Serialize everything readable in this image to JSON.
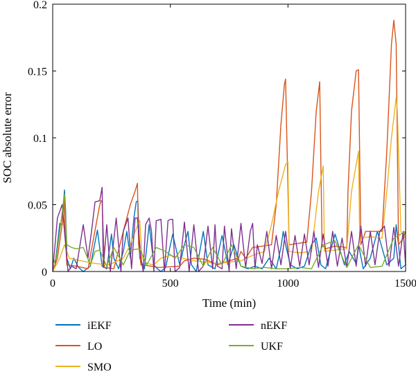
{
  "chart_data": {
    "type": "line",
    "xlabel": "Time (min)",
    "ylabel": "SOC absolute error",
    "xlim": [
      0,
      1500
    ],
    "ylim": [
      0,
      0.2
    ],
    "xticks": [
      0,
      500,
      1000,
      1500
    ],
    "xtick_labels": [
      "0",
      "500",
      "1000",
      "1500"
    ],
    "yticks": [
      0,
      0.05,
      0.1,
      0.15,
      0.2
    ],
    "ytick_labels": [
      "0",
      "0.05",
      "0.1",
      "0.15",
      "0.2"
    ],
    "grid": false,
    "legend_position": "bottom",
    "series": [
      {
        "name": "iEKF",
        "color": "#0072BD",
        "x": [
          0,
          10,
          20,
          30,
          40,
          45,
          50,
          55,
          60,
          75,
          90,
          110,
          130,
          160,
          190,
          210,
          230,
          250,
          260,
          280,
          300,
          315,
          330,
          345,
          355,
          362,
          370,
          390,
          410,
          430,
          445,
          460,
          480,
          510,
          540,
          560,
          575,
          590,
          610,
          620,
          640,
          660,
          690,
          720,
          745,
          770,
          800,
          830,
          860,
          890,
          920,
          950,
          970,
          980,
          990,
          1010,
          1040,
          1070,
          1100,
          1120,
          1140,
          1160,
          1200,
          1240,
          1260,
          1290,
          1300,
          1320,
          1350,
          1380,
          1420,
          1450,
          1460,
          1470,
          1480,
          1500
        ],
        "y": [
          0.0,
          0.005,
          0.02,
          0.036,
          0.035,
          0.05,
          0.061,
          0.045,
          0.01,
          0.002,
          0.01,
          0.003,
          0.0,
          0.004,
          0.031,
          0.004,
          0.002,
          0.028,
          0.01,
          0.002,
          0.015,
          0.03,
          0.01,
          0.04,
          0.052,
          0.053,
          0.01,
          0.002,
          0.035,
          0.005,
          0.002,
          0.0,
          0.003,
          0.028,
          0.005,
          0.02,
          0.03,
          0.005,
          0.0,
          0.01,
          0.03,
          0.005,
          0.002,
          0.027,
          0.005,
          0.02,
          0.004,
          0.002,
          0.004,
          0.002,
          0.01,
          0.002,
          0.018,
          0.03,
          0.02,
          0.005,
          0.002,
          0.004,
          0.02,
          0.025,
          0.005,
          0.002,
          0.028,
          0.005,
          0.015,
          0.006,
          0.02,
          0.002,
          0.01,
          0.03,
          0.005,
          0.01,
          0.035,
          0.02,
          0.002,
          0.005
        ]
      },
      {
        "name": "LO",
        "color": "#D95319",
        "x": [
          0,
          20,
          40,
          48,
          50,
          60,
          100,
          150,
          200,
          205,
          210,
          220,
          260,
          300,
          330,
          350,
          360,
          365,
          375,
          420,
          450,
          540,
          560,
          600,
          650,
          700,
          750,
          790,
          800,
          820,
          850,
          930,
          950,
          970,
          985,
          990,
          1005,
          1080,
          1100,
          1120,
          1135,
          1145,
          1160,
          1200,
          1250,
          1255,
          1270,
          1290,
          1300,
          1310,
          1330,
          1400,
          1420,
          1440,
          1450,
          1460,
          1470,
          1490,
          1500
        ],
        "y": [
          0.0,
          0.01,
          0.035,
          0.055,
          0.04,
          0.005,
          0.004,
          0.002,
          0.05,
          0.053,
          0.052,
          0.003,
          0.002,
          0.03,
          0.05,
          0.06,
          0.066,
          0.02,
          0.005,
          0.004,
          0.003,
          0.004,
          0.008,
          0.01,
          0.009,
          0.005,
          0.008,
          0.01,
          0.015,
          0.01,
          0.018,
          0.02,
          0.05,
          0.11,
          0.14,
          0.144,
          0.02,
          0.022,
          0.06,
          0.12,
          0.142,
          0.02,
          0.017,
          0.019,
          0.018,
          0.06,
          0.12,
          0.15,
          0.151,
          0.02,
          0.03,
          0.03,
          0.09,
          0.17,
          0.188,
          0.17,
          0.02,
          0.025,
          0.03
        ]
      },
      {
        "name": "SMO",
        "color": "#EDB120",
        "x": [
          0,
          30,
          50,
          70,
          120,
          180,
          240,
          300,
          330,
          350,
          370,
          380,
          400,
          430,
          460,
          500,
          550,
          600,
          700,
          800,
          850,
          900,
          930,
          960,
          990,
          1000,
          1005,
          1050,
          1100,
          1130,
          1150,
          1155,
          1200,
          1250,
          1270,
          1300,
          1305,
          1350,
          1400,
          1420,
          1440,
          1460,
          1465,
          1480,
          1500
        ],
        "y": [
          0.0,
          0.01,
          0.02,
          0.01,
          0.008,
          0.006,
          0.005,
          0.01,
          0.02,
          0.03,
          0.038,
          0.01,
          0.006,
          0.005,
          0.01,
          0.012,
          0.01,
          0.008,
          0.006,
          0.008,
          0.012,
          0.015,
          0.035,
          0.06,
          0.08,
          0.082,
          0.015,
          0.014,
          0.015,
          0.06,
          0.079,
          0.015,
          0.016,
          0.017,
          0.06,
          0.09,
          0.025,
          0.026,
          0.025,
          0.06,
          0.1,
          0.13,
          0.12,
          0.03,
          0.025
        ]
      },
      {
        "name": "nEKF",
        "color": "#7E2F8E",
        "x": [
          0,
          20,
          40,
          55,
          65,
          80,
          100,
          130,
          150,
          165,
          180,
          200,
          210,
          215,
          230,
          245,
          270,
          290,
          300,
          320,
          335,
          350,
          360,
          375,
          385,
          395,
          410,
          420,
          430,
          440,
          460,
          475,
          490,
          500,
          510,
          520,
          540,
          560,
          580,
          600,
          620,
          640,
          660,
          680,
          690,
          700,
          720,
          730,
          750,
          760,
          780,
          800,
          820,
          840,
          850,
          860,
          870,
          890,
          910,
          930,
          950,
          970,
          990,
          1010,
          1030,
          1050,
          1070,
          1090,
          1110,
          1130,
          1150,
          1170,
          1190,
          1210,
          1230,
          1250,
          1270,
          1290,
          1310,
          1330,
          1350,
          1370,
          1390,
          1410,
          1430,
          1450,
          1470,
          1490,
          1500
        ],
        "y": [
          0.0,
          0.04,
          0.05,
          0.02,
          0.0,
          0.004,
          0.002,
          0.035,
          0.01,
          0.03,
          0.052,
          0.053,
          0.063,
          0.003,
          0.035,
          0.0,
          0.04,
          0.0,
          0.03,
          0.04,
          0.002,
          0.04,
          0.04,
          0.01,
          0.0,
          0.035,
          0.04,
          0.03,
          0.0,
          0.038,
          0.039,
          0.0,
          0.038,
          0.039,
          0.039,
          0.0,
          0.003,
          0.037,
          0.0,
          0.035,
          0.0,
          0.004,
          0.034,
          0.002,
          0.035,
          0.004,
          0.002,
          0.034,
          0.0,
          0.032,
          0.002,
          0.036,
          0.003,
          0.03,
          0.036,
          0.002,
          0.02,
          0.006,
          0.03,
          0.002,
          0.027,
          0.005,
          0.03,
          0.002,
          0.027,
          0.004,
          0.028,
          0.005,
          0.03,
          0.003,
          0.028,
          0.004,
          0.03,
          0.004,
          0.025,
          0.003,
          0.03,
          0.004,
          0.034,
          0.004,
          0.03,
          0.005,
          0.03,
          0.034,
          0.004,
          0.033,
          0.004,
          0.03,
          0.005
        ]
      },
      {
        "name": "UKF",
        "color": "#77AC30",
        "x": [
          0,
          15,
          30,
          50,
          60,
          80,
          100,
          130,
          160,
          180,
          200,
          230,
          260,
          300,
          330,
          370,
          400,
          440,
          480,
          520,
          560,
          600,
          640,
          680,
          720,
          760,
          800,
          850,
          900,
          950,
          1000,
          1050,
          1100,
          1150,
          1200,
          1250,
          1300,
          1350,
          1400,
          1450,
          1500
        ],
        "y": [
          0.005,
          0.01,
          0.03,
          0.058,
          0.02,
          0.018,
          0.017,
          0.018,
          0.005,
          0.015,
          0.016,
          0.004,
          0.018,
          0.005,
          0.016,
          0.017,
          0.005,
          0.018,
          0.015,
          0.01,
          0.02,
          0.018,
          0.004,
          0.018,
          0.005,
          0.02,
          0.004,
          0.002,
          0.003,
          0.002,
          0.002,
          0.003,
          0.002,
          0.02,
          0.023,
          0.003,
          0.02,
          0.003,
          0.004,
          0.025,
          0.03
        ]
      }
    ]
  }
}
